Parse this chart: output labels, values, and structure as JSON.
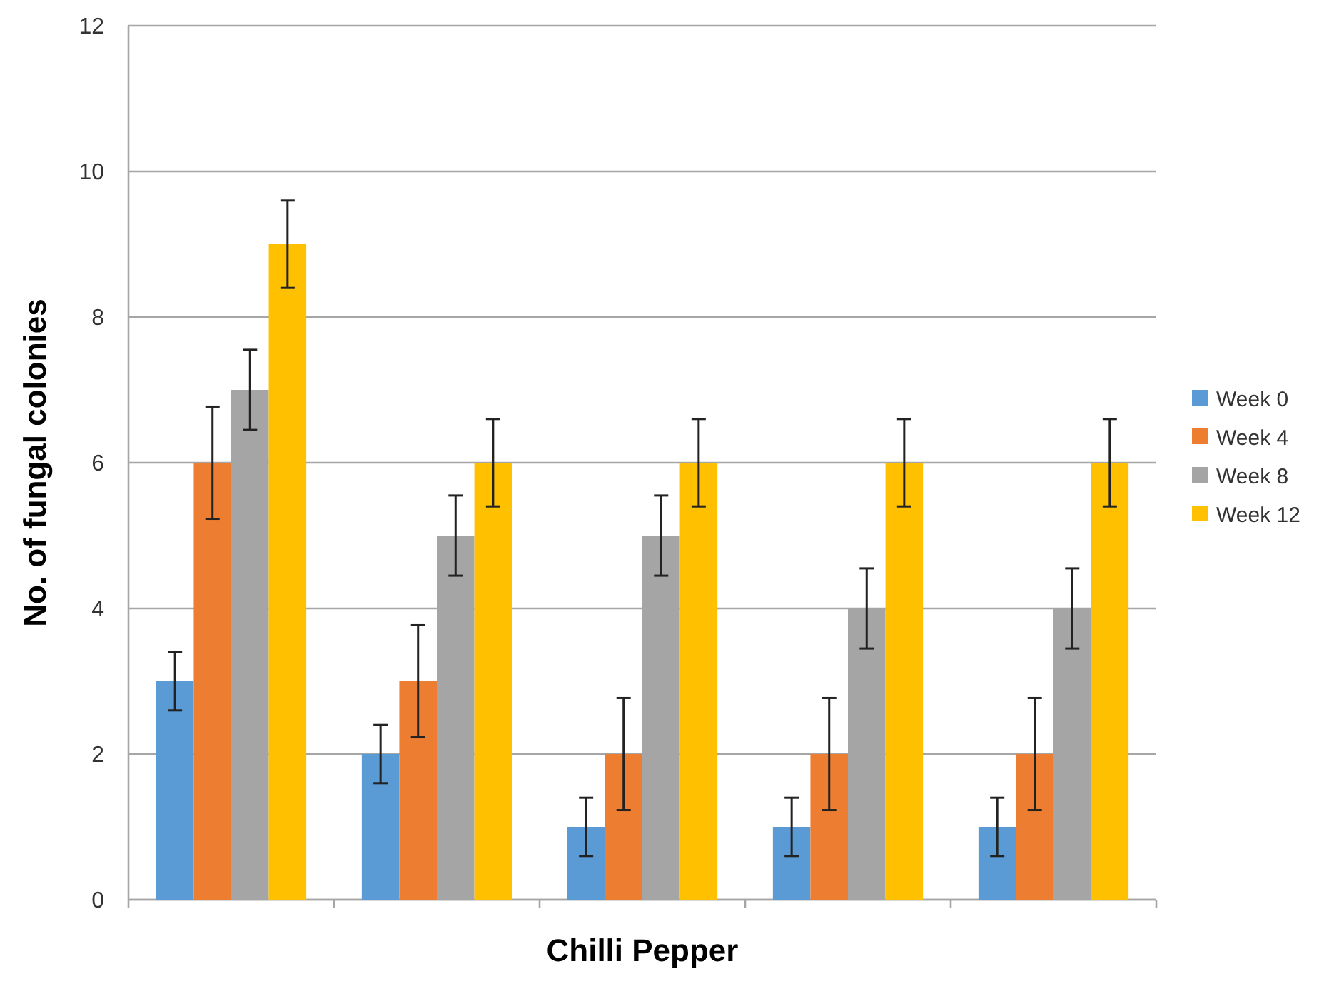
{
  "chart_data": {
    "type": "bar",
    "xlabel": "Chilli Pepper",
    "ylabel": "No. of fungal colonies",
    "categories": [
      null,
      null,
      null,
      null,
      null
    ],
    "series": [
      {
        "name": "Week 0",
        "color": "#5b9bd5",
        "values": [
          3,
          2,
          1,
          1,
          1
        ],
        "errors": [
          0.4,
          0.4,
          0.4,
          0.4,
          0.4
        ]
      },
      {
        "name": "Week 4",
        "color": "#ed7d31",
        "values": [
          6,
          3,
          2,
          2,
          2
        ],
        "errors": [
          0.77,
          0.77,
          0.77,
          0.77,
          0.77
        ]
      },
      {
        "name": "Week 8",
        "color": "#a5a5a5",
        "values": [
          7,
          5,
          5,
          4,
          4
        ],
        "errors": [
          0.55,
          0.55,
          0.55,
          0.55,
          0.55
        ]
      },
      {
        "name": "Week 12",
        "color": "#ffc000",
        "values": [
          9,
          6,
          6,
          6,
          6
        ],
        "errors": [
          0.6,
          0.6,
          0.6,
          0.6,
          0.6
        ]
      }
    ],
    "ylim": [
      0,
      12
    ],
    "yticks": [
      0,
      2,
      4,
      6,
      8,
      10,
      12
    ],
    "grid": "y",
    "legend": "right"
  }
}
